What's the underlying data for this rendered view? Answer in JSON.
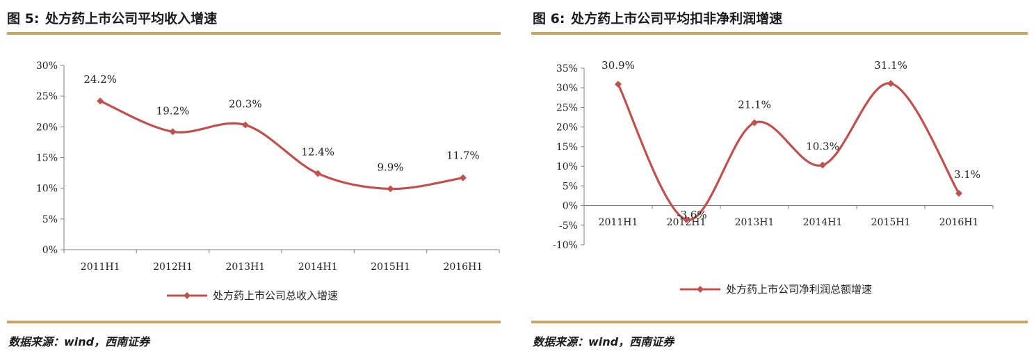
{
  "panels": [
    {
      "figure_number": "图 5:",
      "title": "处方药上市公司平均收入增速",
      "source": "数据来源：wind，西南证券"
    },
    {
      "figure_number": "图 6:",
      "title": "处方药上市公司平均扣非净利润增速",
      "source": "数据来源：wind，西南证券"
    }
  ],
  "colors": {
    "series": "#c0504d",
    "rule": "#c9a56a",
    "axis": "#7f7f7f"
  },
  "chart_data": [
    {
      "type": "line",
      "title": "",
      "xlabel": "",
      "ylabel": "",
      "categories": [
        "2011H1",
        "2012H1",
        "2013H1",
        "2014H1",
        "2015H1",
        "2016H1"
      ],
      "series": [
        {
          "name": "处方药上市公司总收入增速",
          "values": [
            24.2,
            19.2,
            20.3,
            12.4,
            9.9,
            11.7
          ],
          "labels": [
            "24.2%",
            "19.2%",
            "20.3%",
            "12.4%",
            "9.9%",
            "11.7%"
          ]
        }
      ],
      "ylim": [
        0,
        30
      ],
      "yticks": [
        "0%",
        "5%",
        "10%",
        "15%",
        "20%",
        "25%",
        "30%"
      ],
      "grid": false,
      "smooth": true,
      "legend": "bottom-center"
    },
    {
      "type": "line",
      "title": "",
      "xlabel": "",
      "ylabel": "",
      "categories": [
        "2011H1",
        "2012H1",
        "2013H1",
        "2014H1",
        "2015H1",
        "2016H1"
      ],
      "series": [
        {
          "name": "处方药上市公司净利润总额增速",
          "values": [
            30.9,
            -3.6,
            21.1,
            10.3,
            31.1,
            3.1
          ],
          "labels": [
            "30.9%",
            "-3.6%",
            "21.1%",
            "10.3%",
            "31.1%",
            "3.1%"
          ]
        }
      ],
      "ylim": [
        -10,
        35
      ],
      "yticks": [
        "-10%",
        "-5%",
        "0%",
        "5%",
        "10%",
        "15%",
        "20%",
        "25%",
        "30%",
        "35%"
      ],
      "grid": false,
      "smooth": true,
      "legend": "bottom-center"
    }
  ]
}
